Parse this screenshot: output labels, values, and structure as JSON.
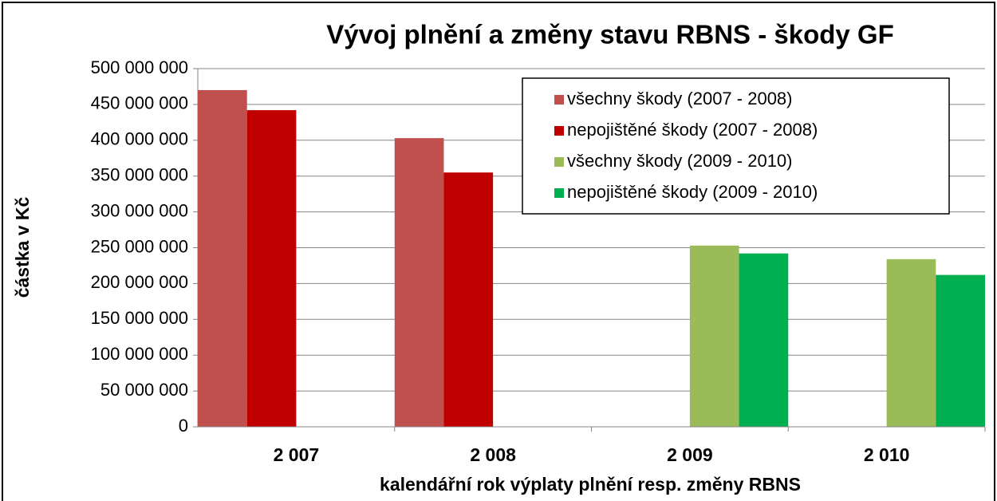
{
  "chart_data": {
    "type": "bar",
    "title": "Vývoj plnění a změny stavu RBNS - škody GF",
    "x_label": "kalendářní rok výplaty plnění resp. změny RBNS",
    "y_label": "částka v Kč",
    "categories": [
      "2 007",
      "2 008",
      "2 009",
      "2 010"
    ],
    "series": [
      {
        "name": "všechny škody (2007 - 2008)",
        "color": "#c0504d",
        "values": [
          470000000,
          403000000,
          null,
          null
        ]
      },
      {
        "name": "nepojištěné škody (2007 - 2008)",
        "color": "#c00000",
        "values": [
          442000000,
          355000000,
          null,
          null
        ]
      },
      {
        "name": "všechny škody (2009 - 2010)",
        "color": "#9bbb59",
        "values": [
          null,
          null,
          253000000,
          234000000
        ]
      },
      {
        "name": "nepojištěné škody (2009 - 2010)",
        "color": "#00b050",
        "values": [
          null,
          null,
          242000000,
          212000000
        ]
      }
    ],
    "ylim": [
      0,
      500000000
    ],
    "yticks": [
      0,
      {
        "value": 50000000,
        "label": "50 000 000"
      },
      {
        "value": 100000000,
        "label": "100 000 000"
      },
      {
        "value": 150000000,
        "label": "150 000 000"
      },
      {
        "value": 200000000,
        "label": "200 000 000"
      },
      {
        "value": 250000000,
        "label": "250 000 000"
      },
      {
        "value": 300000000,
        "label": "300 000 000"
      },
      {
        "value": 350000000,
        "label": "350 000 000"
      },
      {
        "value": 400000000,
        "label": "400 000 000"
      },
      {
        "value": 450000000,
        "label": "450 000 000"
      },
      {
        "value": 500000000,
        "label": "500 000 000"
      }
    ],
    "grid": true,
    "legend": "top-right"
  }
}
